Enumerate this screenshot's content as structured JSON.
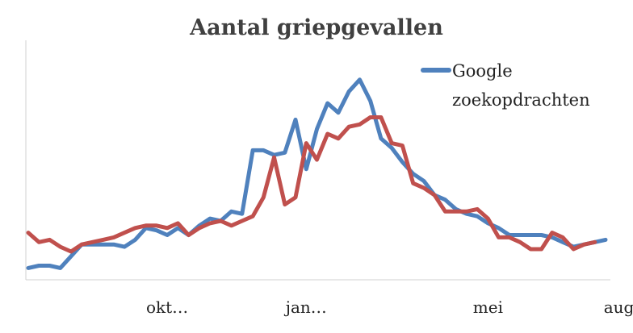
{
  "chart_data": {
    "type": "line",
    "title": "Aantal griepgevallen",
    "xlabel": "",
    "ylabel": "",
    "x_ticks": [
      {
        "label": "okt…",
        "index": 13
      },
      {
        "label": "jan…",
        "index": 26
      },
      {
        "label": "mei",
        "index": 43
      },
      {
        "label": "aug…",
        "index": 56
      }
    ],
    "ylim": [
      0,
      100
    ],
    "grid": false,
    "legend_position": "top-right",
    "legend_text": [
      "Google",
      "zoekopdrachten"
    ],
    "series": [
      {
        "name": "Google zoekopdrachten",
        "color": "#4F81BD",
        "values": [
          5,
          6,
          6,
          5,
          10,
          15,
          15,
          15,
          15,
          14,
          17,
          22,
          21,
          19,
          22,
          19,
          23,
          26,
          25,
          29,
          28,
          55,
          55,
          53,
          54,
          68,
          47,
          64,
          75,
          71,
          80,
          85,
          76,
          60,
          56,
          50,
          45,
          42,
          36,
          34,
          30,
          28,
          27,
          24,
          22,
          19,
          19,
          19,
          19,
          18,
          16,
          14,
          15,
          16,
          17
        ]
      },
      {
        "name": "",
        "color": "#C0504D",
        "values": [
          20,
          16,
          17,
          14,
          12,
          15,
          16,
          17,
          18,
          20,
          22,
          23,
          23,
          22,
          24,
          19,
          22,
          24,
          25,
          23,
          25,
          27,
          35,
          52,
          32,
          35,
          58,
          51,
          62,
          60,
          65,
          66,
          69,
          69,
          58,
          57,
          41,
          39,
          36,
          29,
          29,
          29,
          30,
          26,
          18,
          18,
          16,
          13,
          13,
          20,
          18,
          13,
          15,
          16
        ]
      }
    ]
  }
}
